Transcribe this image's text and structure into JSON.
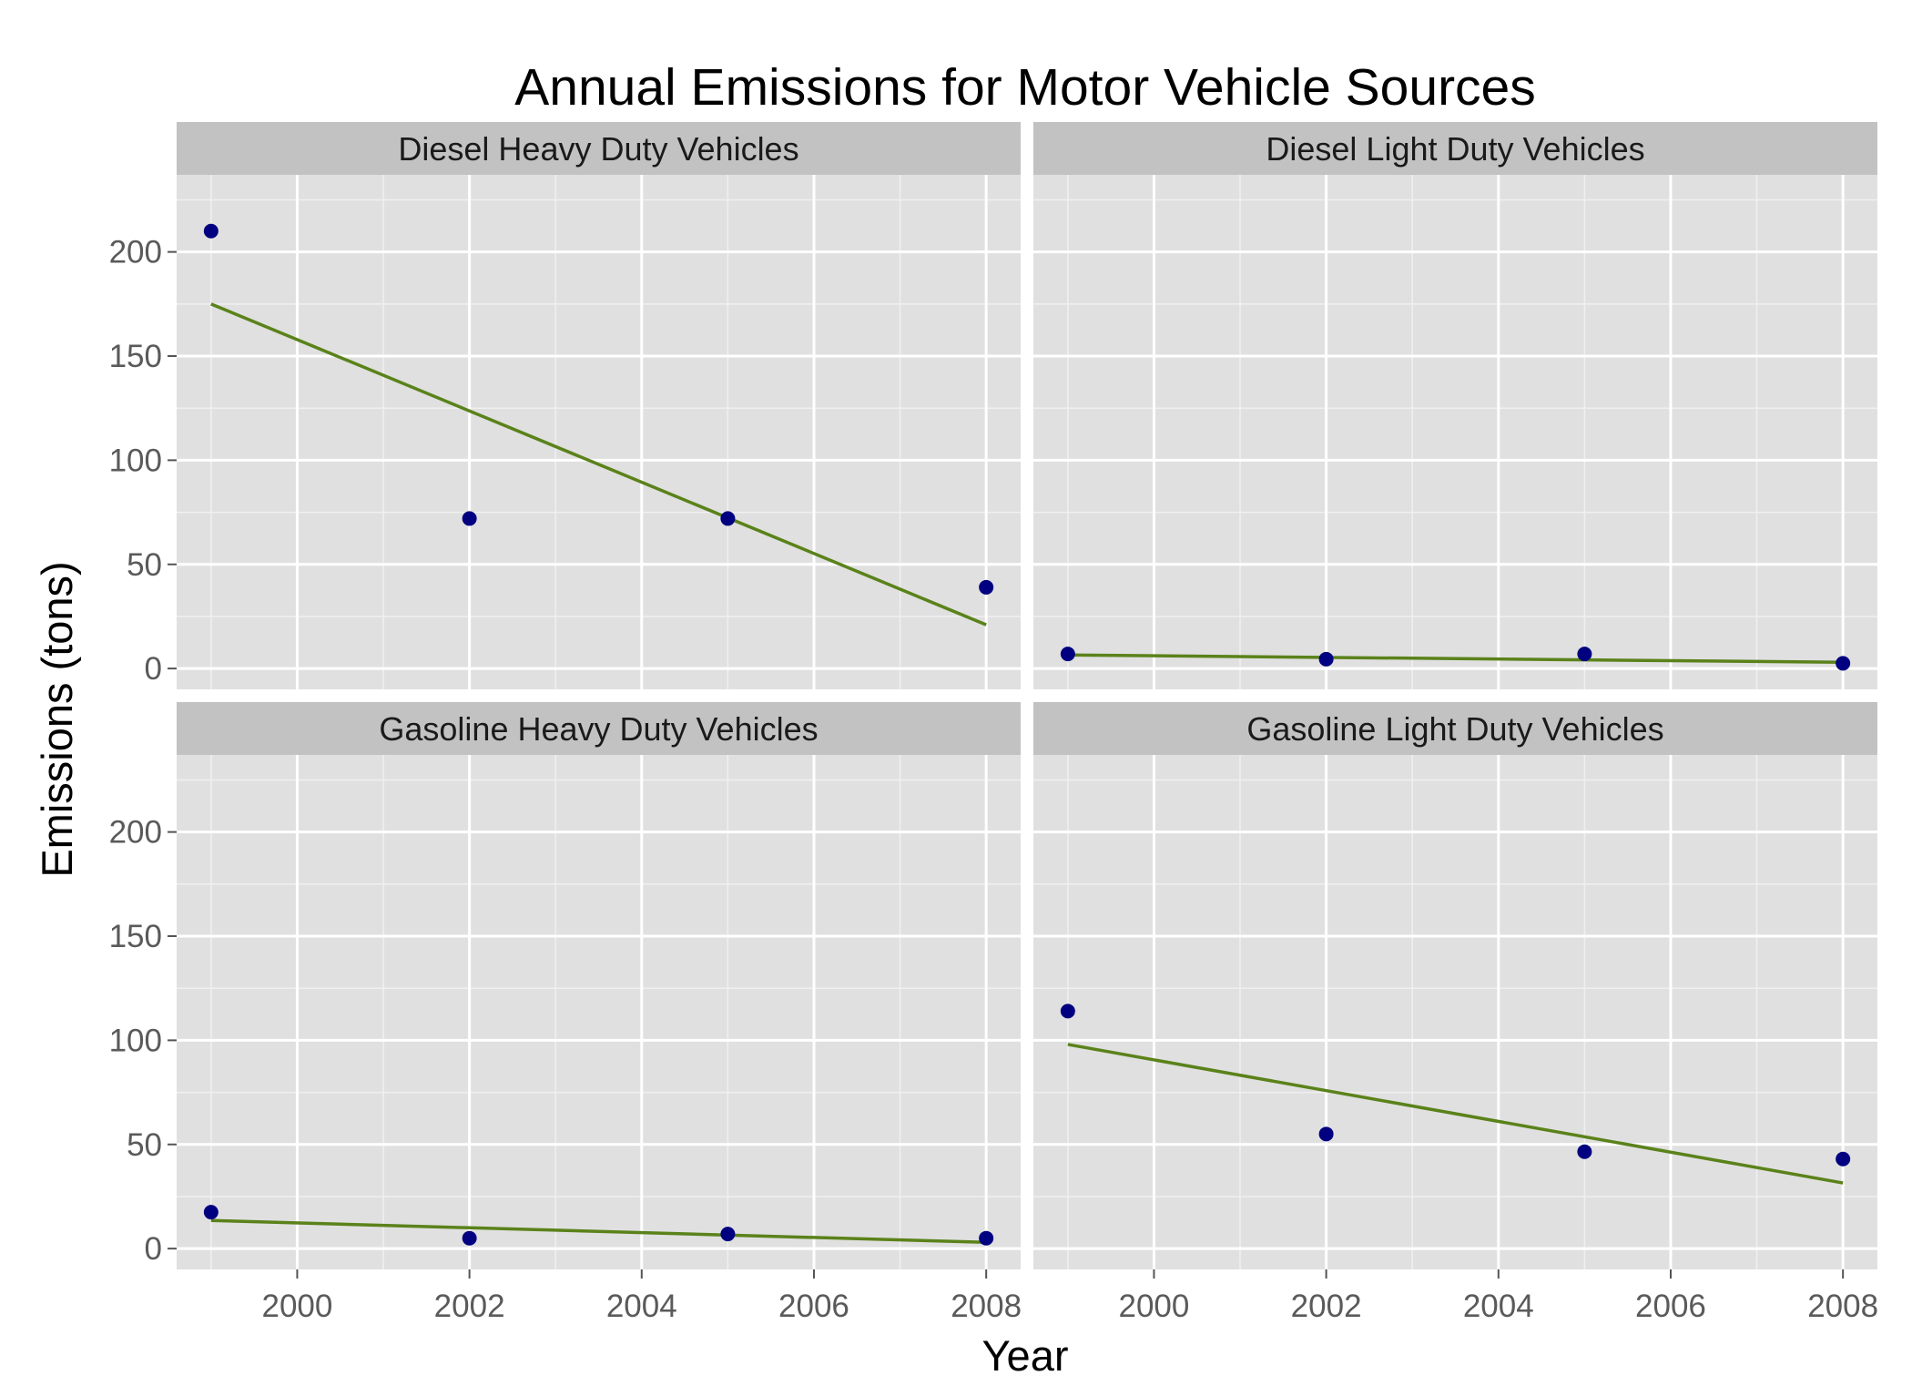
{
  "chart_data": {
    "type": "scatter",
    "title": "Annual Emissions for Motor Vehicle Sources",
    "xlabel": "Year",
    "ylabel": "Emissions (tons)",
    "xlim": [
      1998.6,
      2008.4
    ],
    "ylim": [
      -10,
      237
    ],
    "x_ticks": [
      2000,
      2002,
      2004,
      2006,
      2008
    ],
    "y_ticks": [
      0,
      50,
      100,
      150,
      200
    ],
    "grid": true,
    "point_color": "#000080",
    "line_color": "#5a821a",
    "panel_background": "#e0e0e0",
    "strip_background": "#c2c2c2",
    "panels": [
      {
        "name": "Diesel Heavy Duty Vehicles",
        "x": [
          1999,
          2002,
          2005,
          2008
        ],
        "y": [
          210,
          72,
          72,
          39
        ],
        "trend": {
          "x": [
            1999,
            2008
          ],
          "y": [
            175,
            21
          ]
        }
      },
      {
        "name": "Diesel Light Duty Vehicles",
        "x": [
          1999,
          2002,
          2005,
          2008
        ],
        "y": [
          7,
          4.5,
          7,
          2.5
        ],
        "trend": {
          "x": [
            1999,
            2008
          ],
          "y": [
            6.5,
            3
          ]
        }
      },
      {
        "name": "Gasoline Heavy Duty Vehicles",
        "x": [
          1999,
          2002,
          2005,
          2008
        ],
        "y": [
          17.5,
          5,
          7,
          5
        ],
        "trend": {
          "x": [
            1999,
            2008
          ],
          "y": [
            13.5,
            3
          ]
        }
      },
      {
        "name": "Gasoline Light Duty Vehicles",
        "x": [
          1999,
          2002,
          2005,
          2008
        ],
        "y": [
          114,
          55,
          46.5,
          43
        ],
        "trend": {
          "x": [
            1999,
            2008
          ],
          "y": [
            98,
            31.5
          ]
        }
      }
    ]
  }
}
